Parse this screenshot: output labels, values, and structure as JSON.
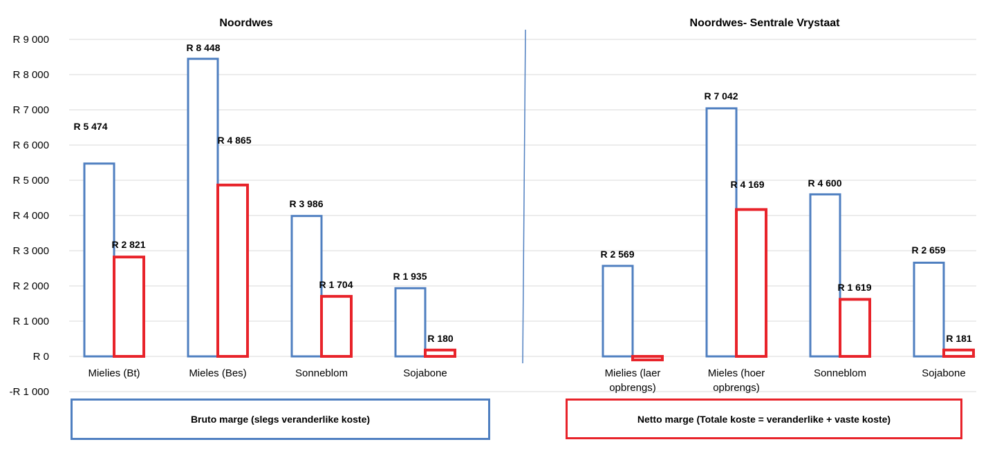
{
  "chart_data": {
    "type": "bar",
    "ylim": [
      -1000,
      9000
    ],
    "y_ticks": [
      {
        "value": 9000,
        "label": "R 9 000"
      },
      {
        "value": 8000,
        "label": "R 8 000"
      },
      {
        "value": 7000,
        "label": "R 7 000"
      },
      {
        "value": 6000,
        "label": "R 6 000"
      },
      {
        "value": 5000,
        "label": "R 5 000"
      },
      {
        "value": 4000,
        "label": "R 4 000"
      },
      {
        "value": 3000,
        "label": "R 3 000"
      },
      {
        "value": 2000,
        "label": "R 2 000"
      },
      {
        "value": 1000,
        "label": "R 1 000"
      },
      {
        "value": 0,
        "label": "R  0"
      },
      {
        "value": -1000,
        "label": "-R 1 000"
      }
    ],
    "grid": true,
    "series_colors": {
      "bruto": "#4f7fc0",
      "netto": "#e8232a"
    },
    "panels": [
      {
        "title": "Noordwes",
        "categories": [
          {
            "label": "Mielies (Bt)",
            "bruto": 5474,
            "bruto_label": "R 5 474",
            "netto": 2821,
            "netto_label": "R 2 821"
          },
          {
            "label": "Mieles (Bes)",
            "bruto": 8448,
            "bruto_label": "R 8 448",
            "netto": 4865,
            "netto_label": "R 4 865"
          },
          {
            "label": "Sonneblom",
            "bruto": 3986,
            "bruto_label": "R 3 986",
            "netto": 1704,
            "netto_label": "R 1 704"
          },
          {
            "label": "Sojabone",
            "bruto": 1935,
            "bruto_label": "R 1 935",
            "netto": 180,
            "netto_label": "R  180"
          }
        ]
      },
      {
        "title": "Noordwes- Sentrale Vrystaat",
        "categories": [
          {
            "label": "Mielies (laer opbrengs)",
            "bruto": 2569,
            "bruto_label": "R 2 569",
            "netto": -100,
            "netto_label": ""
          },
          {
            "label": "Mieles (hoer opbrengs)",
            "bruto": 7042,
            "bruto_label": "R 7 042",
            "netto": 4169,
            "netto_label": "R 4 169"
          },
          {
            "label": "Sonneblom",
            "bruto": 4600,
            "bruto_label": "R 4 600",
            "netto": 1619,
            "netto_label": "R 1 619"
          },
          {
            "label": "Sojabone",
            "bruto": 2659,
            "bruto_label": "R 2 659",
            "netto": 181,
            "netto_label": "R  181"
          }
        ]
      }
    ],
    "legend": [
      {
        "series": "bruto",
        "label": "Bruto marge (slegs veranderlike koste)"
      },
      {
        "series": "netto",
        "label": "Netto marge (Totale koste = veranderlike + vaste koste)"
      }
    ]
  }
}
